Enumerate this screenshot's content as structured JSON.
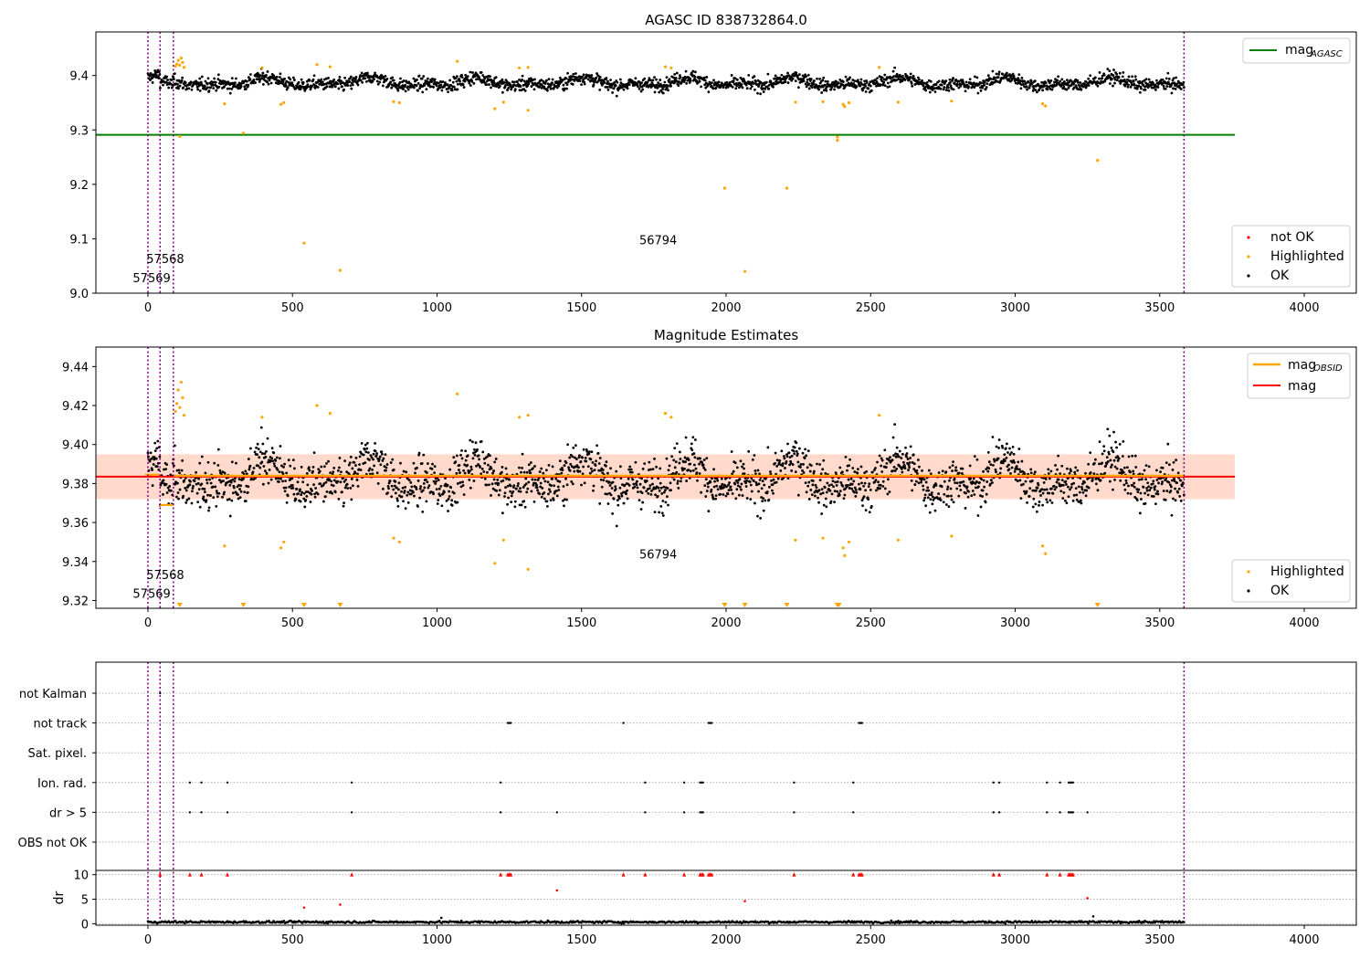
{
  "figure": {
    "top_title": "AGASC ID 838732864.0",
    "mid_title": "Magnitude Estimates"
  },
  "colors": {
    "ok": "#000000",
    "highlighted": "#ffa500",
    "not_ok": "#ff0000",
    "mag_agasc_line": "#008000",
    "mag_line": "#ff0000",
    "mag_obsid_line": "#ffa500",
    "band_fill": "#ffd2c2",
    "obsid_marker": "#800080"
  },
  "chart_data": [
    {
      "type": "scatter",
      "title": "AGASC ID 838732864.0",
      "xlim": [
        -180,
        4180
      ],
      "ylim": [
        9.0,
        9.48
      ],
      "xticks": [
        0,
        500,
        1000,
        1500,
        2000,
        2500,
        3000,
        3500,
        4000
      ],
      "yticks": [
        9.0,
        9.1,
        9.2,
        9.3,
        9.4
      ],
      "ytick_labels": [
        "9.0",
        "9.1",
        "9.2",
        "9.3",
        "9.4"
      ],
      "hlines": [
        {
          "name": "mag_AGASC",
          "y": 9.291,
          "xrange": [
            -180,
            3760
          ]
        }
      ],
      "vlines": [
        0,
        42,
        88,
        3584
      ],
      "annotations": [
        {
          "text": "57568",
          "x": 60,
          "y": 9.055
        },
        {
          "text": "57569",
          "x": 13,
          "y": 9.02
        },
        {
          "text": "56794",
          "x": 1765,
          "y": 9.09
        }
      ],
      "legend_top": {
        "position": "upper right",
        "entries": [
          {
            "label": "mag",
            "sub": "AGASC",
            "style": "line"
          }
        ]
      },
      "legend_bottom": {
        "position": "lower right",
        "entries": [
          {
            "label": "not OK",
            "style": "dot"
          },
          {
            "label": "Highlighted",
            "style": "dot"
          },
          {
            "label": "OK",
            "style": "dot"
          }
        ]
      },
      "ok_series": {
        "x_range": [
          0,
          3584
        ],
        "n_points": 2200,
        "baseline": 9.383,
        "variation": 0.022
      },
      "highlighted_points": [
        [
          100,
          9.421
        ],
        [
          105,
          9.428
        ],
        [
          110,
          9.419
        ],
        [
          115,
          9.432
        ],
        [
          120,
          9.424
        ],
        [
          125,
          9.415
        ],
        [
          95,
          9.417
        ],
        [
          110,
          9.288
        ],
        [
          265,
          9.348
        ],
        [
          330,
          9.294
        ],
        [
          395,
          9.414
        ],
        [
          460,
          9.347
        ],
        [
          470,
          9.35
        ],
        [
          540,
          9.092
        ],
        [
          585,
          9.42
        ],
        [
          630,
          9.416
        ],
        [
          665,
          9.042
        ],
        [
          850,
          9.352
        ],
        [
          870,
          9.35
        ],
        [
          1070,
          9.426
        ],
        [
          1200,
          9.339
        ],
        [
          1230,
          9.351
        ],
        [
          1285,
          9.414
        ],
        [
          1315,
          9.336
        ],
        [
          1315,
          9.415
        ],
        [
          1790,
          9.416
        ],
        [
          1810,
          9.414
        ],
        [
          1995,
          9.193
        ],
        [
          2065,
          9.04
        ],
        [
          2210,
          9.193
        ],
        [
          2240,
          9.351
        ],
        [
          2335,
          9.352
        ],
        [
          2385,
          9.287
        ],
        [
          2385,
          9.281
        ],
        [
          2405,
          9.347
        ],
        [
          2410,
          9.343
        ],
        [
          2425,
          9.35
        ],
        [
          2530,
          9.415
        ],
        [
          2595,
          9.351
        ],
        [
          2780,
          9.353
        ],
        [
          3095,
          9.348
        ],
        [
          3105,
          9.344
        ],
        [
          3285,
          9.244
        ]
      ]
    },
    {
      "type": "scatter",
      "title": "Magnitude Estimates",
      "xlim": [
        -180,
        4180
      ],
      "ylim": [
        9.316,
        9.45
      ],
      "xticks": [
        0,
        500,
        1000,
        1500,
        2000,
        2500,
        3000,
        3500,
        4000
      ],
      "yticks": [
        9.32,
        9.34,
        9.36,
        9.38,
        9.4,
        9.42,
        9.44
      ],
      "ytick_labels": [
        "9.32",
        "9.34",
        "9.36",
        "9.38",
        "9.40",
        "9.42",
        "9.44"
      ],
      "hlines": [
        {
          "name": "mag",
          "y": 9.3835,
          "xrange": [
            -180,
            3760
          ]
        }
      ],
      "band": {
        "y_low": 9.372,
        "y_high": 9.395,
        "xrange": [
          -180,
          3760
        ]
      },
      "mag_obsid_steps": [
        [
          -10,
          9.3845
        ],
        [
          40,
          9.369
        ],
        [
          88,
          9.384
        ],
        [
          3584,
          9.3835
        ]
      ],
      "vlines": [
        0,
        42,
        88,
        3584
      ],
      "annotations": [
        {
          "text": "57568",
          "x": 60,
          "y": 9.331
        },
        {
          "text": "57569",
          "x": 13,
          "y": 9.3215
        },
        {
          "text": "56794",
          "x": 1765,
          "y": 9.3415
        }
      ],
      "out_of_range_markers_x": [
        110,
        330,
        540,
        665,
        1995,
        2065,
        2210,
        2385,
        2390,
        3285
      ],
      "legend_top": {
        "position": "upper right",
        "entries": [
          {
            "label": "mag",
            "sub": "OBSID",
            "style": "line"
          },
          {
            "label": "mag",
            "style": "line"
          }
        ]
      },
      "legend_bottom": {
        "position": "lower right",
        "entries": [
          {
            "label": "Highlighted",
            "style": "dot"
          },
          {
            "label": "OK",
            "style": "dot"
          }
        ]
      }
    },
    {
      "type": "scatter",
      "title": "",
      "xlim": [
        -180,
        4180
      ],
      "xticks": [
        0,
        500,
        1000,
        1500,
        2000,
        2500,
        3000,
        3500,
        4000
      ],
      "categories": [
        "not Kalman",
        "not track",
        "Sat. pixel.",
        "Ion. rad.",
        "dr > 5",
        "OBS not OK"
      ],
      "flag_points": {
        "not Kalman": [
          42
        ],
        "not track": [
          1245,
          1250,
          1255,
          1645,
          1940,
          1945,
          1950,
          2460,
          2465,
          2470
        ],
        "Sat. pixel.": [],
        "Ion. rad.": [
          145,
          185,
          275,
          705,
          1220,
          1720,
          1855,
          1910,
          1915,
          1920,
          2235,
          2440,
          2925,
          2945,
          3110,
          3155,
          3185,
          3190,
          3195,
          3200
        ],
        "dr > 5": [
          145,
          185,
          275,
          705,
          1220,
          1415,
          1720,
          1855,
          1910,
          1915,
          1920,
          2235,
          2440,
          2925,
          2945,
          3110,
          3155,
          3185,
          3190,
          3195,
          3200,
          3250
        ],
        "OBS not OK": []
      },
      "vlines": [
        0,
        42,
        88,
        3584
      ],
      "dr_panel": {
        "ylabel": "dr",
        "yticks": [
          0,
          5,
          10
        ],
        "ylim": [
          -0.3,
          10.5
        ],
        "cap_line": 10,
        "ok_series": {
          "x_range": [
            0,
            3584
          ],
          "baseline": 0.35
        },
        "capped_x": [
          42,
          145,
          185,
          275,
          705,
          1220,
          1245,
          1250,
          1255,
          1645,
          1720,
          1855,
          1910,
          1915,
          1920,
          1940,
          1945,
          1950,
          2235,
          2440,
          2460,
          2465,
          2470,
          2925,
          2945,
          3110,
          3155,
          3185,
          3190,
          3195,
          3200
        ],
        "red_points": [
          [
            540,
            3.3
          ],
          [
            665,
            3.9
          ],
          [
            1415,
            6.8
          ],
          [
            2065,
            4.6
          ],
          [
            3250,
            5.2
          ]
        ],
        "black_points": [
          [
            1015,
            1.2
          ],
          [
            3270,
            1.5
          ]
        ]
      }
    }
  ]
}
